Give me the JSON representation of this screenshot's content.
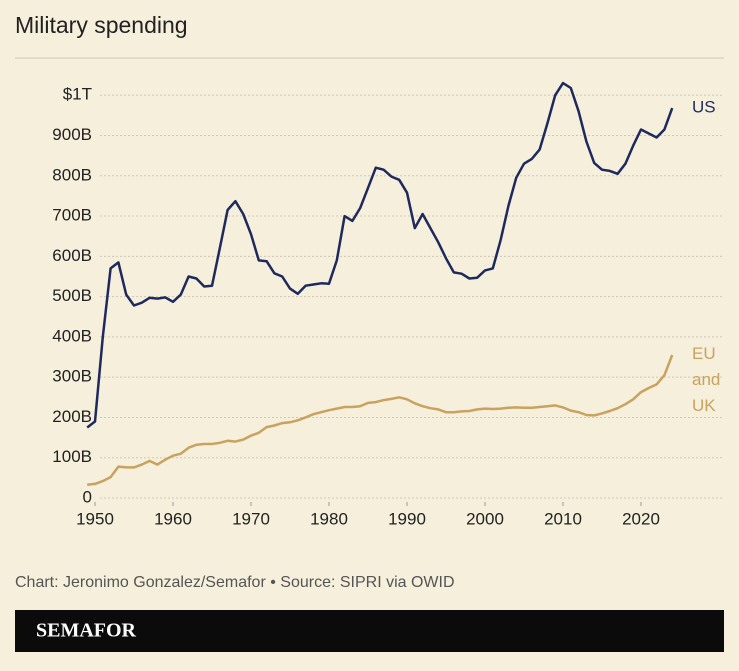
{
  "chart_data": {
    "type": "line",
    "title": "Military spending",
    "x": [
      1949,
      1950,
      1951,
      1952,
      1953,
      1954,
      1955,
      1956,
      1957,
      1958,
      1959,
      1960,
      1961,
      1962,
      1963,
      1964,
      1965,
      1966,
      1967,
      1968,
      1969,
      1970,
      1971,
      1972,
      1973,
      1974,
      1975,
      1976,
      1977,
      1978,
      1979,
      1980,
      1981,
      1982,
      1983,
      1984,
      1985,
      1986,
      1987,
      1988,
      1989,
      1990,
      1991,
      1992,
      1993,
      1994,
      1995,
      1996,
      1997,
      1998,
      1999,
      2000,
      2001,
      2002,
      2003,
      2004,
      2005,
      2006,
      2007,
      2008,
      2009,
      2010,
      2011,
      2012,
      2013,
      2014,
      2015,
      2016,
      2017,
      2018,
      2019,
      2020,
      2021,
      2022,
      2023,
      2024
    ],
    "series": [
      {
        "name": "US",
        "color": "#1e2a5e",
        "values": [
          175,
          190,
          400,
          570,
          585,
          505,
          478,
          485,
          497,
          495,
          498,
          487,
          505,
          550,
          545,
          525,
          527,
          620,
          715,
          737,
          705,
          655,
          590,
          588,
          558,
          550,
          520,
          507,
          527,
          530,
          533,
          532,
          590,
          700,
          688,
          720,
          770,
          820,
          815,
          798,
          790,
          758,
          670,
          705,
          670,
          635,
          595,
          560,
          557,
          545,
          547,
          565,
          570,
          640,
          725,
          795,
          830,
          842,
          865,
          930,
          1000,
          1030,
          1018,
          960,
          885,
          832,
          815,
          812,
          805,
          830,
          875,
          915,
          905,
          895,
          915,
          968
        ]
      },
      {
        "name": "EU and UK",
        "color": "#c9a25f",
        "values": [
          33,
          35,
          42,
          52,
          78,
          76,
          76,
          83,
          92,
          83,
          95,
          105,
          110,
          125,
          132,
          134,
          134,
          137,
          142,
          140,
          145,
          155,
          162,
          176,
          180,
          186,
          188,
          193,
          200,
          208,
          213,
          218,
          222,
          226,
          226,
          228,
          236,
          238,
          243,
          246,
          250,
          245,
          235,
          228,
          223,
          220,
          213,
          213,
          215,
          216,
          220,
          222,
          221,
          222,
          224,
          225,
          224,
          224,
          226,
          228,
          230,
          225,
          217,
          213,
          206,
          205,
          210,
          216,
          223,
          233,
          245,
          263,
          273,
          282,
          305,
          355
        ]
      }
    ],
    "xlim": [
      1946,
      2030
    ],
    "xticks": [
      1950,
      1960,
      1970,
      1980,
      1990,
      2000,
      2010,
      2020
    ],
    "ylim": [
      0,
      1080
    ],
    "yticks": [
      0,
      {
        "value": 100,
        "label": "100B"
      },
      {
        "value": 200,
        "label": "200B"
      },
      {
        "value": 300,
        "label": "300B"
      },
      {
        "value": 400,
        "label": "400B"
      },
      {
        "value": 500,
        "label": "500B"
      },
      {
        "value": 600,
        "label": "600B"
      },
      {
        "value": 700,
        "label": "700B"
      },
      {
        "value": 800,
        "label": "800B"
      },
      {
        "value": 900,
        "label": "900B"
      },
      {
        "value": 1000,
        "label": "$1T"
      }
    ],
    "grid": true,
    "source": "Chart: Jeronimo Gonzalez/Semafor • Source: SIPRI via OWID",
    "brand": "SEMAFOR"
  }
}
